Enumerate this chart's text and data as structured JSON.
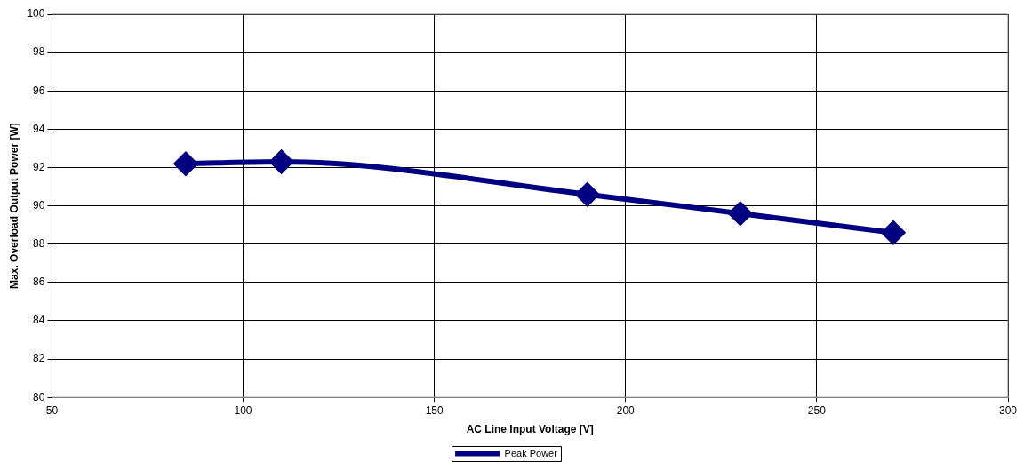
{
  "chart_data": {
    "type": "line",
    "xlabel": "AC Line Input Voltage [V]",
    "ylabel": "Max. Overload Output Power [W]",
    "x": [
      85,
      110,
      190,
      230,
      270
    ],
    "series": [
      {
        "name": "Peak Power",
        "color": "#000080",
        "values": [
          92.2,
          92.3,
          90.6,
          89.6,
          88.6
        ]
      }
    ],
    "xlim": [
      50,
      300
    ],
    "xticks": [
      50,
      100,
      150,
      200,
      250,
      300
    ],
    "ylim": [
      80,
      100
    ],
    "yticks": [
      80,
      82,
      84,
      86,
      88,
      90,
      92,
      94,
      96,
      98,
      100
    ],
    "grid": true,
    "legend": "bottom",
    "marker": "diamond",
    "line_style": "solid"
  }
}
